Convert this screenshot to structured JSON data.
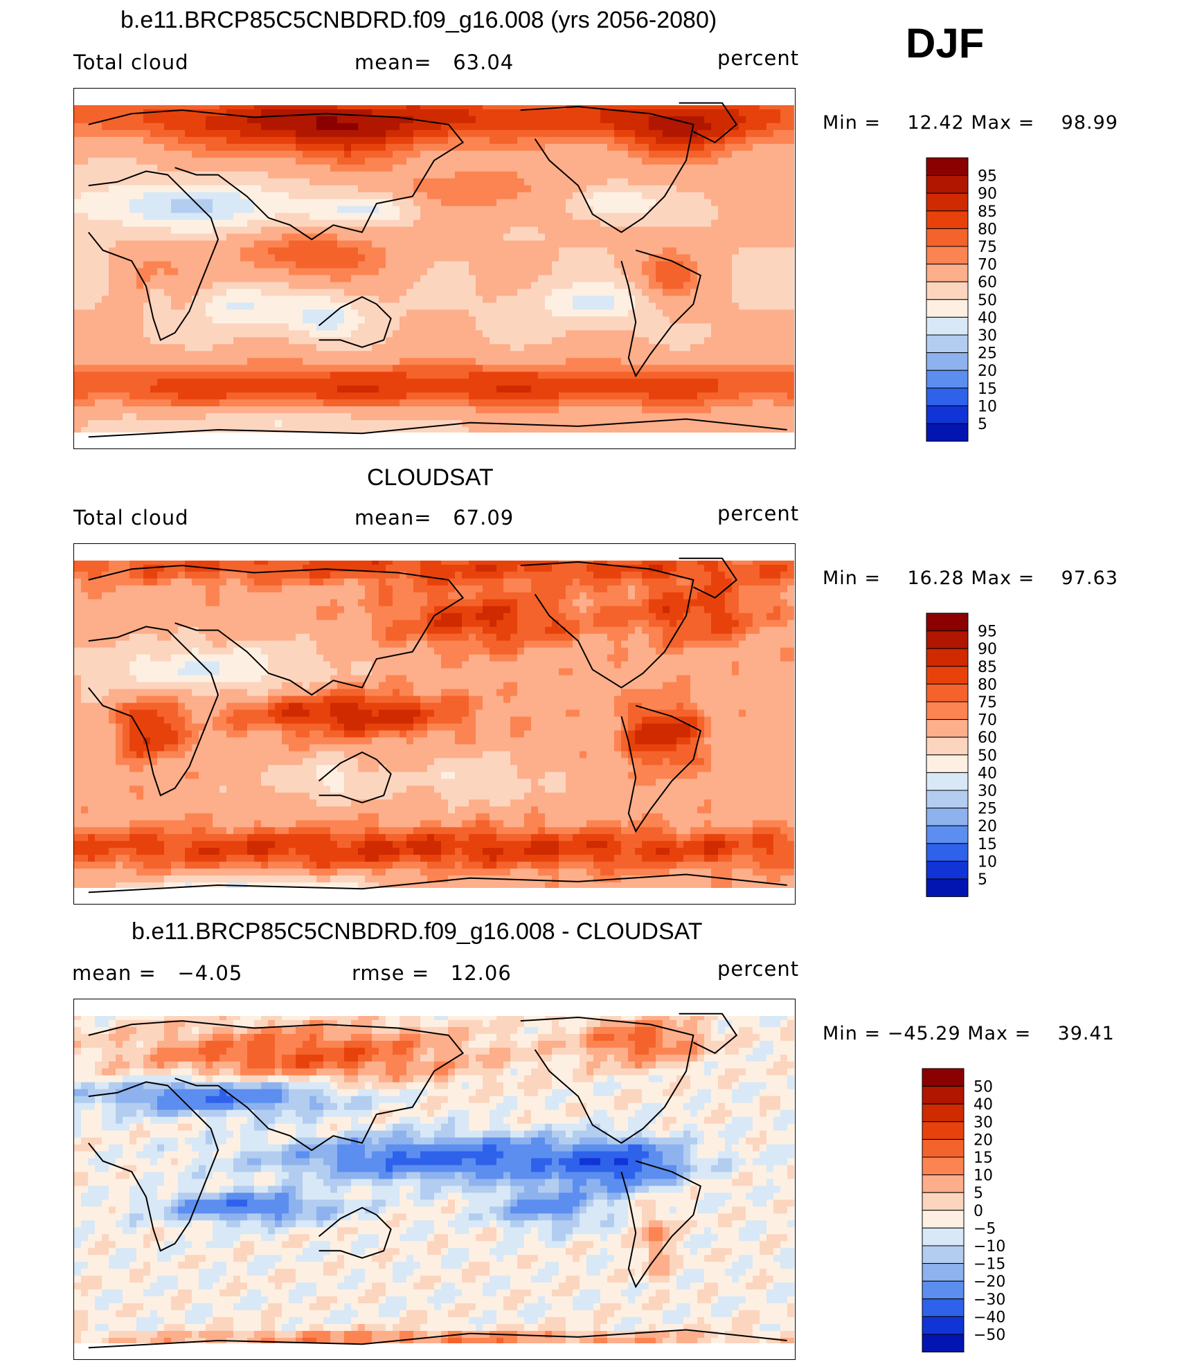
{
  "header": {
    "season": "DJF"
  },
  "chart_data": [
    {
      "type": "heatmap",
      "title": "b.e11.BRCP85C5CNBDRD.f09_g16.008 (yrs 2056-2080)",
      "left_label": "Total cloud",
      "center_label": "mean=   63.04",
      "units": "percent",
      "min": 12.42,
      "max": 98.99,
      "minmax_text": "Min =    12.42 Max =    98.99",
      "mean": 63.04,
      "colorbar": {
        "levels": [
          "95",
          "90",
          "85",
          "80",
          "75",
          "70",
          "60",
          "50",
          "40",
          "30",
          "25",
          "20",
          "15",
          "10",
          "5"
        ],
        "colors": [
          "#8b0000",
          "#b01600",
          "#cf2a00",
          "#e8420c",
          "#f4632b",
          "#fb8452",
          "#fdae8a",
          "#fcd5bf",
          "#fdf0e2",
          "#d8e8f6",
          "#b3cdf0",
          "#8db2ee",
          "#5c8ef0",
          "#2e62ea",
          "#1034d6",
          "#0315b0"
        ]
      },
      "field": "model"
    },
    {
      "type": "heatmap",
      "title": "CLOUDSAT",
      "left_label": "Total cloud",
      "center_label": "mean=   67.09",
      "units": "percent",
      "min": 16.28,
      "max": 97.63,
      "minmax_text": "Min =    16.28 Max =    97.63",
      "mean": 67.09,
      "colorbar": {
        "levels": [
          "95",
          "90",
          "85",
          "80",
          "75",
          "70",
          "60",
          "50",
          "40",
          "30",
          "25",
          "20",
          "15",
          "10",
          "5"
        ],
        "colors": [
          "#8b0000",
          "#b01600",
          "#cf2a00",
          "#e8420c",
          "#f4632b",
          "#fb8452",
          "#fdae8a",
          "#fcd5bf",
          "#fdf0e2",
          "#d8e8f6",
          "#b3cdf0",
          "#8db2ee",
          "#5c8ef0",
          "#2e62ea",
          "#1034d6",
          "#0315b0"
        ]
      },
      "field": "obs"
    },
    {
      "type": "heatmap",
      "title": "b.e11.BRCP85C5CNBDRD.f09_g16.008 - CLOUDSAT",
      "left_label": "mean =   −4.05",
      "center_label": "rmse =   12.06",
      "units": "percent",
      "min": -45.29,
      "max": 39.41,
      "minmax_text": "Min = −45.29 Max =    39.41",
      "mean": -4.05,
      "rmse": 12.06,
      "colorbar": {
        "levels": [
          "50",
          "40",
          "30",
          "20",
          "15",
          "10",
          "5",
          "0",
          "−5",
          "−10",
          "−15",
          "−20",
          "−30",
          "−40",
          "−50"
        ],
        "colors": [
          "#8b0000",
          "#b01600",
          "#cf2a00",
          "#e8420c",
          "#f4632b",
          "#fb8452",
          "#fdae8a",
          "#fcd5bf",
          "#fdf0e2",
          "#d8e8f6",
          "#b3cdf0",
          "#8db2ee",
          "#5c8ef0",
          "#2e62ea",
          "#1034d6",
          "#0315b0"
        ]
      },
      "field": "diff"
    }
  ]
}
